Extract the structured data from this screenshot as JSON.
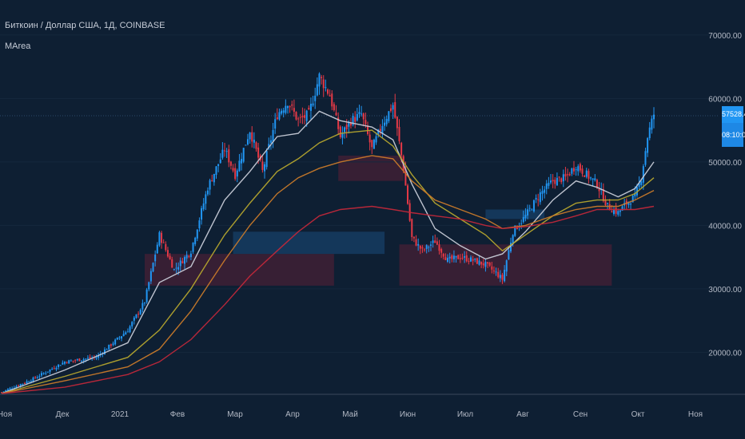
{
  "header": {
    "symbol_line": "Биткоин / Доллар США, 1Д, COINBASE",
    "indicator_name": "MArea"
  },
  "price_scale": {
    "last_price": "57528.40",
    "countdown": "08:10:07"
  },
  "colors": {
    "background": "#0e1f33",
    "candle_up": "#2196f3",
    "candle_down": "#e53946",
    "ma_fast": "#c8ccd8",
    "ma_mid": "#b5a52e",
    "ma_slow": "#c97a2a",
    "ma_long": "#c0283a",
    "zone_bull": "#1a4a7a",
    "zone_bear": "#5a1f35"
  },
  "chart_data": {
    "type": "candlestick",
    "title": "Биткоин / Доллар США, 1Д, COINBASE",
    "indicator": "MArea",
    "x_ticks": [
      "Ноя",
      "Дек",
      "2021",
      "Фев",
      "Мар",
      "Апр",
      "Май",
      "Июн",
      "Июл",
      "Авг",
      "Сен",
      "Окт",
      "Ноя"
    ],
    "y_ticks": [
      "70000.00",
      "60000.00",
      "50000.00",
      "40000.00",
      "30000.00",
      "20000.00"
    ],
    "y_tick_values": [
      70000,
      60000,
      50000,
      40000,
      30000,
      20000
    ],
    "ylim": [
      13500,
      72000
    ],
    "close_path": [
      [
        0,
        13700
      ],
      [
        15,
        15800
      ],
      [
        30,
        18500
      ],
      [
        45,
        19200
      ],
      [
        60,
        23500
      ],
      [
        68,
        28000
      ],
      [
        75,
        38500
      ],
      [
        82,
        33000
      ],
      [
        90,
        36000
      ],
      [
        98,
        46000
      ],
      [
        106,
        52000
      ],
      [
        111,
        48000
      ],
      [
        118,
        55000
      ],
      [
        124,
        48500
      ],
      [
        131,
        57500
      ],
      [
        136,
        59500
      ],
      [
        141,
        56500
      ],
      [
        146,
        57500
      ],
      [
        151,
        63500
      ],
      [
        156,
        60500
      ],
      [
        161,
        54000
      ],
      [
        166,
        56500
      ],
      [
        171,
        57500
      ],
      [
        176,
        52000
      ],
      [
        181,
        56000
      ],
      [
        186,
        59000
      ],
      [
        191,
        49000
      ],
      [
        195,
        38000
      ],
      [
        200,
        36000
      ],
      [
        206,
        37500
      ],
      [
        212,
        34500
      ],
      [
        218,
        35000
      ],
      [
        224,
        34500
      ],
      [
        230,
        33800
      ],
      [
        235,
        32500
      ],
      [
        238,
        31500
      ],
      [
        243,
        39000
      ],
      [
        249,
        41500
      ],
      [
        256,
        45000
      ],
      [
        262,
        47000
      ],
      [
        268,
        47500
      ],
      [
        273,
        49500
      ],
      [
        278,
        48000
      ],
      [
        283,
        46500
      ],
      [
        288,
        43000
      ],
      [
        293,
        42000
      ],
      [
        297,
        43500
      ],
      [
        301,
        44500
      ],
      [
        304,
        47500
      ],
      [
        307,
        54000
      ],
      [
        310,
        57528
      ]
    ],
    "moving_averages": [
      {
        "color": "#c8ccd8",
        "values": [
          [
            0,
            13500
          ],
          [
            30,
            17200
          ],
          [
            60,
            21500
          ],
          [
            75,
            31000
          ],
          [
            90,
            33500
          ],
          [
            106,
            44000
          ],
          [
            118,
            48500
          ],
          [
            131,
            54000
          ],
          [
            141,
            54500
          ],
          [
            151,
            58000
          ],
          [
            161,
            56500
          ],
          [
            176,
            55500
          ],
          [
            186,
            53500
          ],
          [
            195,
            46500
          ],
          [
            206,
            39500
          ],
          [
            218,
            36800
          ],
          [
            230,
            34700
          ],
          [
            238,
            35500
          ],
          [
            249,
            39000
          ],
          [
            262,
            44000
          ],
          [
            273,
            47000
          ],
          [
            283,
            46000
          ],
          [
            293,
            44500
          ],
          [
            301,
            45800
          ],
          [
            310,
            50000
          ]
        ]
      },
      {
        "color": "#b5a52e",
        "values": [
          [
            0,
            13500
          ],
          [
            30,
            16200
          ],
          [
            60,
            19200
          ],
          [
            75,
            23500
          ],
          [
            90,
            30000
          ],
          [
            106,
            38500
          ],
          [
            118,
            43500
          ],
          [
            131,
            48500
          ],
          [
            141,
            50500
          ],
          [
            151,
            53000
          ],
          [
            161,
            54500
          ],
          [
            176,
            55000
          ],
          [
            186,
            52500
          ],
          [
            195,
            48000
          ],
          [
            206,
            43500
          ],
          [
            218,
            41000
          ],
          [
            230,
            38500
          ],
          [
            238,
            36000
          ],
          [
            249,
            38500
          ],
          [
            262,
            41500
          ],
          [
            273,
            43500
          ],
          [
            283,
            44000
          ],
          [
            293,
            44000
          ],
          [
            301,
            45000
          ],
          [
            310,
            47500
          ]
        ]
      },
      {
        "color": "#c97a2a",
        "values": [
          [
            0,
            13500
          ],
          [
            30,
            15500
          ],
          [
            60,
            17700
          ],
          [
            75,
            20500
          ],
          [
            90,
            26500
          ],
          [
            106,
            34500
          ],
          [
            118,
            40000
          ],
          [
            131,
            45000
          ],
          [
            141,
            47500
          ],
          [
            151,
            49000
          ],
          [
            161,
            50000
          ],
          [
            176,
            51000
          ],
          [
            186,
            50500
          ],
          [
            195,
            47000
          ],
          [
            206,
            44000
          ],
          [
            218,
            42500
          ],
          [
            230,
            41000
          ],
          [
            238,
            39500
          ],
          [
            249,
            40000
          ],
          [
            262,
            41500
          ],
          [
            273,
            42500
          ],
          [
            283,
            43000
          ],
          [
            293,
            43000
          ],
          [
            301,
            44000
          ],
          [
            310,
            45500
          ]
        ]
      },
      {
        "color": "#c0283a",
        "values": [
          [
            0,
            13500
          ],
          [
            30,
            14500
          ],
          [
            60,
            16500
          ],
          [
            75,
            18500
          ],
          [
            90,
            22000
          ],
          [
            106,
            27500
          ],
          [
            118,
            32000
          ],
          [
            131,
            36000
          ],
          [
            141,
            39000
          ],
          [
            151,
            41500
          ],
          [
            161,
            42500
          ],
          [
            176,
            43000
          ],
          [
            186,
            42500
          ],
          [
            195,
            42000
          ],
          [
            206,
            41500
          ],
          [
            218,
            41000
          ],
          [
            230,
            40000
          ],
          [
            238,
            39500
          ],
          [
            249,
            39800
          ],
          [
            262,
            40500
          ],
          [
            273,
            41500
          ],
          [
            283,
            42500
          ],
          [
            293,
            42500
          ],
          [
            301,
            42500
          ],
          [
            310,
            43000
          ]
        ]
      }
    ],
    "zones": [
      {
        "kind": "bear",
        "from_day": 68,
        "to_day": 158,
        "lo": 30500,
        "hi": 35500
      },
      {
        "kind": "bull",
        "from_day": 110,
        "to_day": 182,
        "lo": 35500,
        "hi": 39000
      },
      {
        "kind": "bear",
        "from_day": 160,
        "to_day": 191,
        "lo": 47000,
        "hi": 51000
      },
      {
        "kind": "bear",
        "from_day": 189,
        "to_day": 290,
        "lo": 30500,
        "hi": 37000
      },
      {
        "kind": "bull",
        "from_day": 230,
        "to_day": 258,
        "lo": 41000,
        "hi": 42500
      }
    ]
  }
}
